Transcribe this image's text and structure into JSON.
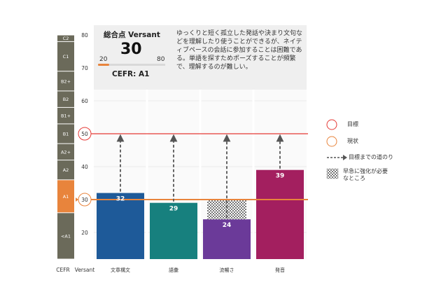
{
  "score_panel": {
    "title": "総合点 Versant",
    "score": "30",
    "score_value": 30,
    "range_min": "20",
    "range_max": "80",
    "cefr": "CEFR: A1",
    "description": "ゆっくりと短く孤立した発話や決まり文句などを理解したり使うことができるが、ネイティブペースの会話に参加することは困難である。単語を探すためポーズすることが頻繁で、理解するのが難しい。"
  },
  "cefr_scale": {
    "header": "CEFR",
    "levels": [
      {
        "label": "C2",
        "top": 80,
        "bottom": 78
      },
      {
        "label": "C1",
        "top": 78,
        "bottom": 69
      },
      {
        "label": "B2+",
        "top": 69,
        "bottom": 63
      },
      {
        "label": "B2",
        "top": 63,
        "bottom": 58
      },
      {
        "label": "B1+",
        "top": 58,
        "bottom": 53
      },
      {
        "label": "B1",
        "top": 53,
        "bottom": 47
      },
      {
        "label": "A2+",
        "top": 47,
        "bottom": 42
      },
      {
        "label": "A2",
        "top": 42,
        "bottom": 36
      },
      {
        "label": "A1",
        "top": 36,
        "bottom": 26
      },
      {
        "label": "<A1",
        "top": 26,
        "bottom": 10
      }
    ],
    "highlight": "A1"
  },
  "chart_data": {
    "type": "bar",
    "ylabel": "Versant",
    "ylim": [
      10,
      80
    ],
    "yticks": [
      "80",
      "70",
      "60",
      "50",
      "40",
      "30",
      "20"
    ],
    "categories": [
      "文章構文",
      "語彙",
      "流暢さ",
      "発音"
    ],
    "values": [
      32,
      29,
      24,
      39
    ],
    "value_labels": [
      "32",
      "29",
      "24",
      "39"
    ],
    "bar_colors": [
      "#1e5a99",
      "#17807e",
      "#6b3a99",
      "#a31f5f"
    ],
    "target": 50,
    "target_label": "50",
    "current": 30,
    "current_label": "30",
    "urgent_category": "流暢さ",
    "urgent_range": [
      24,
      30
    ],
    "target_color": "#e53935",
    "current_color": "#e8843c"
  },
  "legend": {
    "target": "目標",
    "current": "現状",
    "path": "目標までの道のり",
    "urgent": "早急に強化が必要なところ"
  }
}
